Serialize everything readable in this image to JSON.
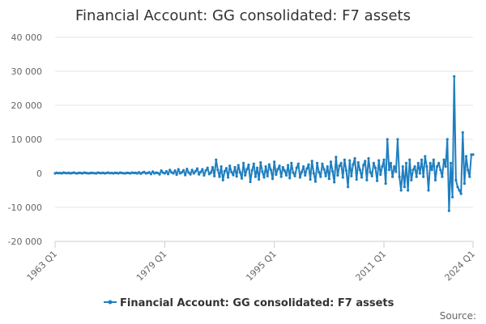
{
  "chart_data": {
    "type": "line",
    "title": "Financial Account: GG consolidated: F7 assets",
    "series_name": "Financial Account: GG consolidated: F7 assets",
    "color": "#1f7fbf",
    "x_start": "1963 Q1",
    "x_end": "2024 Q1",
    "x_ticks": [
      "1963 Q1",
      "1979 Q1",
      "1995 Q1",
      "2011 Q1",
      "2024 Q1"
    ],
    "y_ticks": [
      "40 000",
      "30 000",
      "20 000",
      "10 000",
      "0",
      "-10 000",
      "-20 000"
    ],
    "ylim": [
      -20000,
      40000
    ],
    "legend_position": "bottom-center",
    "grid": true,
    "values": [
      0,
      150,
      50,
      100,
      0,
      200,
      100,
      50,
      150,
      0,
      100,
      200,
      50,
      0,
      150,
      100,
      0,
      200,
      100,
      50,
      0,
      150,
      100,
      50,
      0,
      200,
      100,
      50,
      150,
      0,
      100,
      200,
      50,
      100,
      0,
      150,
      100,
      0,
      200,
      100,
      50,
      0,
      150,
      100,
      0,
      200,
      100,
      150,
      0,
      300,
      -100,
      200,
      400,
      0,
      100,
      300,
      -200,
      500,
      0,
      200,
      100,
      -300,
      800,
      200,
      0,
      600,
      -200,
      1000,
      300,
      0,
      800,
      -400,
      1200,
      0,
      300,
      900,
      -500,
      1300,
      200,
      -300,
      1000,
      0,
      600,
      1400,
      -300,
      400,
      1200,
      -600,
      800,
      1600,
      -200,
      200,
      1800,
      -800,
      4000,
      1000,
      -1000,
      2000,
      -2000,
      600,
      1500,
      -1200,
      2200,
      400,
      -500,
      1800,
      -900,
      2400,
      300,
      -1500,
      3000,
      -600,
      1200,
      2500,
      -2500,
      900,
      2800,
      -1000,
      1600,
      -1800,
      3200,
      500,
      -1200,
      2000,
      -800,
      2600,
      1000,
      -1600,
      3400,
      -400,
      1200,
      2200,
      -1000,
      1800,
      800,
      -600,
      2400,
      -1400,
      3000,
      200,
      -800,
      1600,
      2800,
      -1200,
      400,
      2000,
      -600,
      1400,
      2600,
      -1800,
      3600,
      0,
      -2400,
      3000,
      400,
      -1000,
      2800,
      1200,
      -800,
      2000,
      -1600,
      3400,
      600,
      -2600,
      4800,
      -600,
      2200,
      3000,
      -1200,
      4000,
      800,
      -4000,
      3800,
      -800,
      2600,
      4400,
      -1800,
      3200,
      1000,
      -1200,
      2400,
      3600,
      -2000,
      4400,
      400,
      -800,
      3000,
      1600,
      -2200,
      3800,
      -400,
      2000,
      4000,
      -3000,
      10000,
      1000,
      3000,
      -1000,
      2000,
      500,
      10000,
      -1000,
      -5000,
      2000,
      -4000,
      3000,
      -5000,
      4000,
      -2000,
      1000,
      2000,
      -1000,
      3000,
      0,
      4000,
      -1000,
      5000,
      2000,
      -5000,
      3000,
      1000,
      4000,
      -2000,
      2000,
      3000,
      1000,
      -1000,
      4000,
      2000,
      10000,
      -11000,
      3000,
      -7000,
      28500,
      -2000,
      -4000,
      -5000,
      -6000,
      12000,
      -3000,
      5000,
      1000,
      -1000,
      5500,
      5500
    ]
  },
  "credit": "Source:"
}
